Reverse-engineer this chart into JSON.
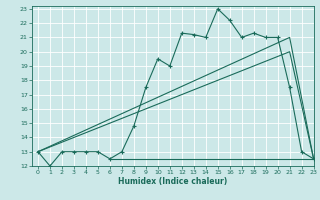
{
  "title": "",
  "xlabel": "Humidex (Indice chaleur)",
  "ylabel": "",
  "bg_color": "#cce8e8",
  "grid_color": "#aad4d4",
  "line_color": "#1a6b5a",
  "xlim": [
    -0.5,
    23
  ],
  "ylim": [
    12,
    23.2
  ],
  "yticks": [
    12,
    13,
    14,
    15,
    16,
    17,
    18,
    19,
    20,
    21,
    22,
    23
  ],
  "xticks": [
    0,
    1,
    2,
    3,
    4,
    5,
    6,
    7,
    8,
    9,
    10,
    11,
    12,
    13,
    14,
    15,
    16,
    17,
    18,
    19,
    20,
    21,
    22,
    23
  ],
  "series1_x": [
    0,
    1,
    2,
    3,
    4,
    5,
    6,
    7,
    8,
    9,
    10,
    11,
    12,
    13,
    14,
    15,
    16,
    17,
    18,
    19,
    20,
    21,
    22,
    23
  ],
  "series1_y": [
    13,
    12,
    13,
    13,
    13,
    13,
    12.5,
    13,
    14.8,
    17.5,
    19.5,
    19.0,
    21.3,
    21.2,
    21.0,
    23.0,
    22.2,
    21.0,
    21.3,
    21.0,
    21.0,
    17.5,
    13.0,
    12.5
  ],
  "series2_x": [
    0,
    21,
    23
  ],
  "series2_y": [
    13,
    21.0,
    12.5
  ],
  "series3_x": [
    0,
    21,
    23
  ],
  "series3_y": [
    13,
    20.0,
    12.5
  ],
  "series4_x": [
    6,
    21,
    23
  ],
  "series4_y": [
    12.5,
    12.5,
    12.5
  ]
}
